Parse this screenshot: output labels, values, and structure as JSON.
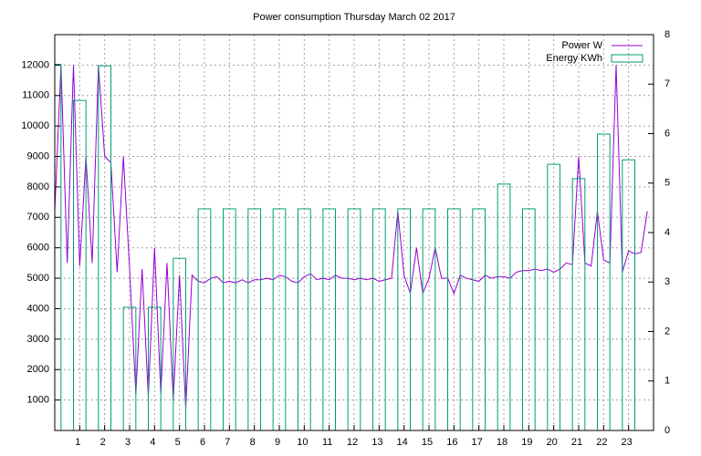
{
  "chart_data": {
    "type": "line",
    "title": "Power consumption Thursday March 02 2017",
    "xlim": [
      0,
      24
    ],
    "xticks": [
      1,
      2,
      3,
      4,
      5,
      6,
      7,
      8,
      9,
      10,
      11,
      12,
      13,
      14,
      15,
      16,
      17,
      18,
      19,
      20,
      21,
      22,
      23
    ],
    "ylim": [
      0,
      13000
    ],
    "yticks": [
      1000,
      2000,
      3000,
      4000,
      5000,
      6000,
      7000,
      8000,
      9000,
      10000,
      11000,
      12000
    ],
    "y2lim": [
      0,
      8
    ],
    "y2ticks": [
      0,
      1,
      2,
      3,
      4,
      5,
      6,
      7,
      8
    ],
    "grid": true,
    "legend": "top-right",
    "series": [
      {
        "name": "Power W",
        "color": "#9400d3",
        "style": "line",
        "x": [
          0,
          0.25,
          0.5,
          0.75,
          1,
          1.25,
          1.5,
          1.75,
          2,
          2.25,
          2.5,
          2.75,
          3,
          3.25,
          3.5,
          3.75,
          4,
          4.25,
          4.5,
          4.75,
          5,
          5.25,
          5.5,
          5.75,
          6,
          6.25,
          6.5,
          6.75,
          7,
          7.25,
          7.5,
          7.75,
          8,
          8.25,
          8.5,
          8.75,
          9,
          9.25,
          9.5,
          9.75,
          10,
          10.25,
          10.5,
          10.75,
          11,
          11.25,
          11.5,
          11.75,
          12,
          12.25,
          12.5,
          12.75,
          13,
          13.25,
          13.5,
          13.75,
          14,
          14.25,
          14.5,
          14.75,
          15,
          15.25,
          15.5,
          15.75,
          16,
          16.25,
          16.5,
          16.75,
          17,
          17.25,
          17.5,
          17.75,
          18,
          18.25,
          18.5,
          18.75,
          19,
          19.25,
          19.5,
          19.75,
          20,
          20.25,
          20.5,
          20.75,
          21,
          21.25,
          21.5,
          21.75,
          22,
          22.25,
          22.5,
          22.75,
          23,
          23.25,
          23.5,
          23.75
        ],
        "values": [
          7200,
          12000,
          5500,
          12000,
          5400,
          9000,
          5500,
          12000,
          9000,
          8800,
          5200,
          9000,
          5300,
          1200,
          5300,
          1100,
          6000,
          1200,
          5500,
          1000,
          5100,
          700,
          5100,
          4900,
          4850,
          5000,
          5050,
          4850,
          4900,
          4850,
          4950,
          4850,
          4950,
          4950,
          5000,
          4950,
          5100,
          5050,
          4900,
          4850,
          5050,
          5150,
          4950,
          5000,
          4950,
          5100,
          5000,
          5000,
          4950,
          5000,
          4950,
          5000,
          4900,
          4950,
          5000,
          7200,
          5100,
          4500,
          6000,
          4500,
          5000,
          6000,
          5000,
          5000,
          4500,
          5100,
          5000,
          4950,
          4900,
          5100,
          5000,
          5050,
          5050,
          5000,
          5200,
          5250,
          5250,
          5300,
          5250,
          5300,
          5200,
          5300,
          5500,
          5450,
          9000,
          5500,
          5400,
          7200,
          5600,
          5500,
          12000,
          5200,
          5900,
          5800,
          5850,
          7200
        ]
      },
      {
        "name": "Energy KWh",
        "color": "#009e73",
        "style": "boxes",
        "axis": "y2",
        "x": [
          0,
          1,
          2,
          3,
          4,
          5,
          6,
          7,
          8,
          9,
          10,
          11,
          12,
          13,
          14,
          15,
          16,
          17,
          18,
          19,
          20,
          21,
          22,
          23
        ],
        "values": [
          7.4,
          6.67,
          7.37,
          2.49,
          2.49,
          3.48,
          4.48,
          4.48,
          4.48,
          4.48,
          4.48,
          4.48,
          4.48,
          4.48,
          4.48,
          4.48,
          4.48,
          4.48,
          4.98,
          4.48,
          5.38,
          5.09,
          5.99,
          5.47
        ]
      }
    ]
  }
}
